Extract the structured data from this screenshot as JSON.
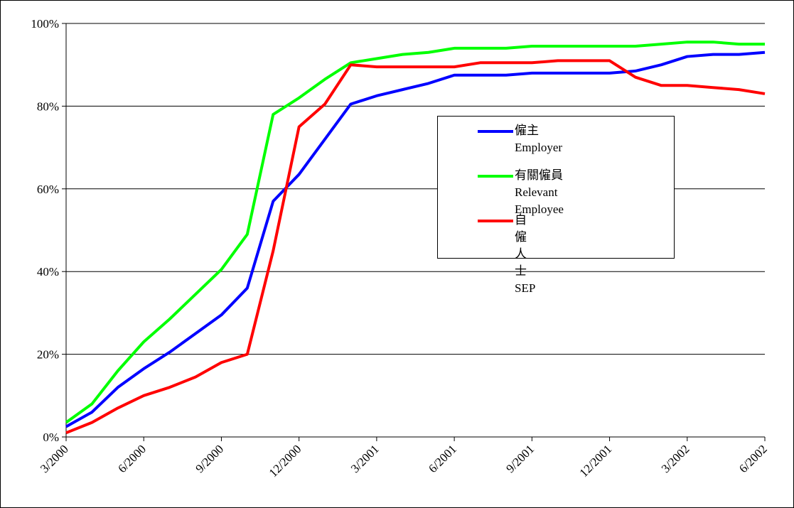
{
  "chart_data": {
    "type": "line",
    "categories": [
      "3/2000",
      null,
      null,
      "6/2000",
      null,
      null,
      "9/2000",
      null,
      null,
      "12/2000",
      null,
      null,
      "3/2001",
      null,
      null,
      "6/2001",
      null,
      null,
      "9/2001",
      null,
      null,
      "12/2001",
      null,
      null,
      "3/2002",
      null,
      null,
      "6/2002"
    ],
    "series": [
      {
        "name": "僱主\nEmployer",
        "color": "#0000ff",
        "values": [
          2.5,
          6,
          12,
          16.5,
          20.5,
          25,
          29.5,
          36,
          57,
          63.5,
          72,
          80.5,
          82.5,
          84,
          85.5,
          87.5,
          87.5,
          87.5,
          88,
          88,
          88,
          88,
          88.5,
          90,
          92,
          92.5,
          92.5,
          93
        ]
      },
      {
        "name": "有關僱員\nRelevant Employee",
        "color": "#00ff00",
        "values": [
          3.5,
          8,
          16,
          23,
          28.5,
          34.5,
          40.5,
          49,
          78,
          82,
          86.5,
          90.5,
          91.5,
          92.5,
          93,
          94,
          94,
          94,
          94.5,
          94.5,
          94.5,
          94.5,
          94.5,
          95,
          95.5,
          95.5,
          95,
          95
        ]
      },
      {
        "name": "自僱人士\nSEP",
        "color": "#ff0000",
        "values": [
          1,
          3.5,
          7,
          10,
          12,
          14.5,
          18,
          20,
          45,
          75,
          80.5,
          90,
          89.5,
          89.5,
          89.5,
          89.5,
          90.5,
          90.5,
          90.5,
          91,
          91,
          91,
          87,
          85,
          85,
          84.5,
          84,
          83
        ]
      }
    ],
    "ylim": [
      0,
      100
    ],
    "yticks": [
      {
        "value": 0,
        "label": "0%"
      },
      {
        "value": 20,
        "label": "20%"
      },
      {
        "value": 40,
        "label": "40%"
      },
      {
        "value": 60,
        "label": "60%"
      },
      {
        "value": 80,
        "label": "80%"
      },
      {
        "value": 100,
        "label": "100%"
      }
    ],
    "grid": true
  }
}
